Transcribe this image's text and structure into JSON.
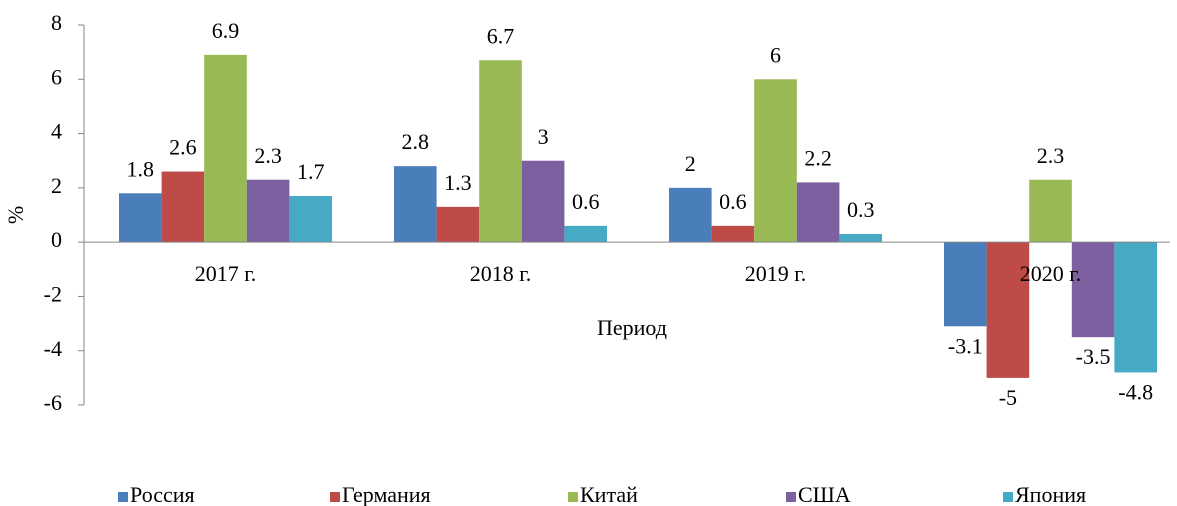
{
  "chart_data": {
    "type": "bar",
    "x_label": "Период",
    "y_label": "%",
    "categories": [
      "2017 г.",
      "2018 г.",
      "2019 г.",
      "2020 г."
    ],
    "series": [
      {
        "name": "Россия",
        "color": "#4a7ebb",
        "values": [
          1.8,
          2.8,
          2,
          -3.1
        ]
      },
      {
        "name": "Германия",
        "color": "#be4b48",
        "values": [
          2.6,
          1.3,
          0.6,
          -5
        ]
      },
      {
        "name": "Китай",
        "color": "#98b954",
        "values": [
          6.9,
          6.7,
          6,
          2.3
        ]
      },
      {
        "name": "США",
        "color": "#7d60a0",
        "values": [
          2.3,
          3,
          2.2,
          -3.5
        ]
      },
      {
        "name": "Япония",
        "color": "#46aac5",
        "values": [
          1.7,
          0.6,
          0.3,
          -4.8
        ]
      }
    ],
    "ylim": [
      -6,
      8
    ],
    "yticks": [
      -6,
      -4,
      -2,
      0,
      2,
      4,
      6,
      8
    ],
    "legend": "bottom"
  }
}
